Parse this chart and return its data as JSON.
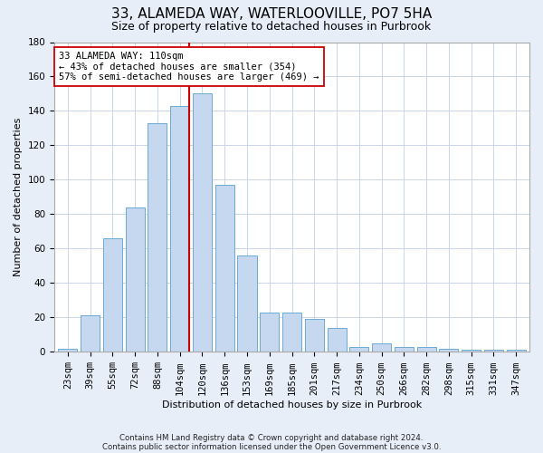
{
  "title1": "33, ALAMEDA WAY, WATERLOOVILLE, PO7 5HA",
  "title2": "Size of property relative to detached houses in Purbrook",
  "xlabel": "Distribution of detached houses by size in Purbrook",
  "ylabel": "Number of detached properties",
  "bins": [
    "23sqm",
    "39sqm",
    "55sqm",
    "72sqm",
    "88sqm",
    "104sqm",
    "120sqm",
    "136sqm",
    "153sqm",
    "169sqm",
    "185sqm",
    "201sqm",
    "217sqm",
    "234sqm",
    "250sqm",
    "266sqm",
    "282sqm",
    "298sqm",
    "315sqm",
    "331sqm",
    "347sqm"
  ],
  "bar_heights": [
    2,
    21,
    66,
    84,
    133,
    143,
    150,
    97,
    56,
    23,
    23,
    19,
    14,
    3,
    5,
    3,
    3,
    2,
    1,
    1,
    1
  ],
  "bar_color": "#C5D8F0",
  "bar_edge_color": "#6AAAD4",
  "vline_x_bin": 5,
  "vline_color": "#CC0000",
  "annotation_line1": "33 ALAMEDA WAY: 110sqm",
  "annotation_line2": "← 43% of detached houses are smaller (354)",
  "annotation_line3": "57% of semi-detached houses are larger (469) →",
  "annotation_box_color": "white",
  "annotation_box_edge": "#CC0000",
  "ylim": [
    0,
    180
  ],
  "yticks": [
    0,
    20,
    40,
    60,
    80,
    100,
    120,
    140,
    160,
    180
  ],
  "footer1": "Contains HM Land Registry data © Crown copyright and database right 2024.",
  "footer2": "Contains public sector information licensed under the Open Government Licence v3.0.",
  "figure_bg": "#E8EEF8",
  "plot_bg": "white",
  "grid_color": "#C8D4E8",
  "title1_fontsize": 11,
  "title2_fontsize": 9,
  "xlabel_fontsize": 8,
  "ylabel_fontsize": 8,
  "tick_fontsize": 7.5
}
